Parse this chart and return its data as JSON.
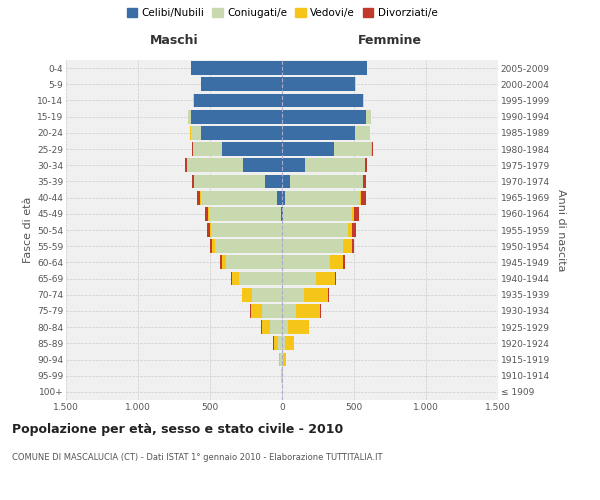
{
  "age_groups": [
    "100+",
    "95-99",
    "90-94",
    "85-89",
    "80-84",
    "75-79",
    "70-74",
    "65-69",
    "60-64",
    "55-59",
    "50-54",
    "45-49",
    "40-44",
    "35-39",
    "30-34",
    "25-29",
    "20-24",
    "15-19",
    "10-14",
    "5-9",
    "0-4"
  ],
  "birth_years": [
    "≤ 1909",
    "1910-1914",
    "1915-1919",
    "1920-1924",
    "1925-1929",
    "1930-1934",
    "1935-1939",
    "1940-1944",
    "1945-1949",
    "1950-1954",
    "1955-1959",
    "1960-1964",
    "1965-1969",
    "1970-1974",
    "1975-1979",
    "1980-1984",
    "1985-1989",
    "1990-1994",
    "1995-1999",
    "2000-2004",
    "2005-2009"
  ],
  "males": {
    "celibi": [
      0,
      0,
      0,
      0,
      0,
      0,
      0,
      0,
      0,
      0,
      0,
      10,
      35,
      120,
      270,
      420,
      560,
      630,
      610,
      560,
      630
    ],
    "coniugati": [
      3,
      6,
      15,
      30,
      85,
      140,
      210,
      300,
      390,
      465,
      490,
      500,
      530,
      490,
      390,
      200,
      75,
      25,
      5,
      2,
      2
    ],
    "vedovi": [
      0,
      2,
      8,
      28,
      55,
      75,
      65,
      50,
      30,
      18,
      10,
      4,
      2,
      1,
      1,
      1,
      1,
      0,
      0,
      0,
      0
    ],
    "divorziati": [
      0,
      0,
      0,
      2,
      5,
      5,
      5,
      6,
      12,
      18,
      22,
      22,
      22,
      15,
      10,
      5,
      2,
      0,
      0,
      0,
      0
    ]
  },
  "females": {
    "nubili": [
      0,
      0,
      0,
      0,
      0,
      0,
      0,
      0,
      0,
      0,
      0,
      5,
      20,
      55,
      160,
      360,
      510,
      580,
      560,
      510,
      590
    ],
    "coniugate": [
      2,
      4,
      8,
      18,
      45,
      95,
      155,
      235,
      335,
      425,
      455,
      480,
      520,
      505,
      415,
      260,
      100,
      35,
      8,
      3,
      3
    ],
    "vedove": [
      1,
      6,
      22,
      65,
      140,
      170,
      165,
      130,
      90,
      58,
      33,
      18,
      8,
      5,
      3,
      2,
      1,
      0,
      0,
      0,
      0
    ],
    "divorziate": [
      0,
      0,
      0,
      2,
      5,
      8,
      8,
      8,
      15,
      20,
      25,
      32,
      32,
      20,
      15,
      8,
      3,
      0,
      0,
      0,
      0
    ]
  },
  "color_celibi": "#3a6ea5",
  "color_coniugati": "#c8d9b0",
  "color_vedovi": "#f5c518",
  "color_divorziati": "#c0392b",
  "xlim": 1500,
  "title": "Popolazione per età, sesso e stato civile - 2010",
  "subtitle": "COMUNE DI MASCALUCIA (CT) - Dati ISTAT 1° gennaio 2010 - Elaborazione TUTTITALIA.IT",
  "ylabel_left": "Fasce di età",
  "ylabel_right": "Anni di nascita",
  "label_maschi": "Maschi",
  "label_femmine": "Femmine",
  "legend_celibi": "Celibi/Nubili",
  "legend_coniugati": "Coniugati/e",
  "legend_vedovi": "Vedovi/e",
  "legend_divorziati": "Divorziati/e",
  "background_color": "#f0f0f0",
  "grid_color": "#cccccc"
}
